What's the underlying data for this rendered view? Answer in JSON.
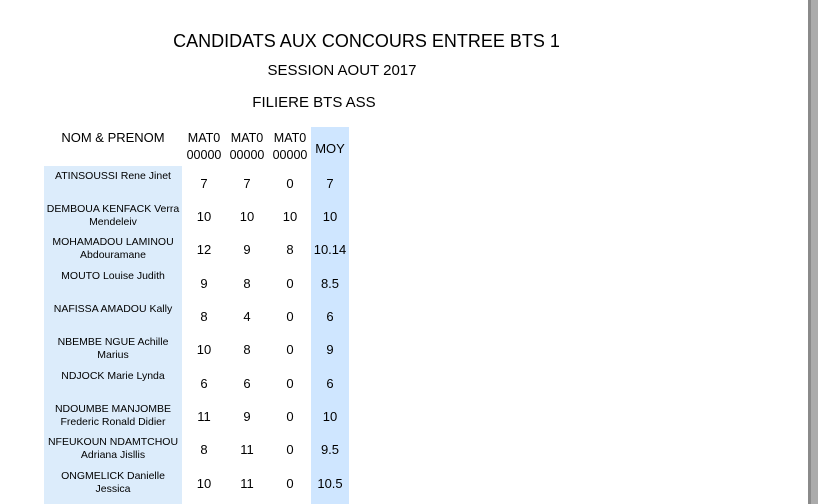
{
  "title": "CANDIDATS AUX CONCOURS ENTREE BTS 1",
  "session": "SESSION AOUT 2017",
  "filiere": "FILIERE BTS ASS",
  "headers": {
    "name": "NOM & PRENOM",
    "mat": [
      "MAT0",
      "MAT0",
      "MAT0"
    ],
    "mat_sub": [
      "00000",
      "00000",
      "00000"
    ],
    "moy": "MOY"
  },
  "rows": [
    {
      "name": "ATINSOUSSI Rene Jinet",
      "m1": "7",
      "m2": "7",
      "m3": "0",
      "moy": "7"
    },
    {
      "name": "DEMBOUA KENFACK Verra Mendeleiv",
      "m1": "10",
      "m2": "10",
      "m3": "10",
      "moy": "10"
    },
    {
      "name": "MOHAMADOU LAMINOU Abdouramane",
      "m1": "12",
      "m2": "9",
      "m3": "8",
      "moy": "10.14"
    },
    {
      "name": "MOUTO Louise Judith",
      "m1": "9",
      "m2": "8",
      "m3": "0",
      "moy": "8.5"
    },
    {
      "name": "NAFISSA AMADOU Kally",
      "m1": "8",
      "m2": "4",
      "m3": "0",
      "moy": "6"
    },
    {
      "name": "NBEMBE NGUE Achille Marius",
      "m1": "10",
      "m2": "8",
      "m3": "0",
      "moy": "9"
    },
    {
      "name": "NDJOCK Marie Lynda",
      "m1": "6",
      "m2": "6",
      "m3": "0",
      "moy": "6"
    },
    {
      "name": "NDOUMBE MANJOMBE Frederic Ronald Didier",
      "m1": "11",
      "m2": "9",
      "m3": "0",
      "moy": "10"
    },
    {
      "name": "NFEUKOUN NDAMTCHOU Adriana Jisllis",
      "m1": "8",
      "m2": "11",
      "m3": "0",
      "moy": "9.5"
    },
    {
      "name": "ONGMELICK Danielle Jessica",
      "m1": "10",
      "m2": "11",
      "m3": "0",
      "moy": "10.5"
    }
  ]
}
